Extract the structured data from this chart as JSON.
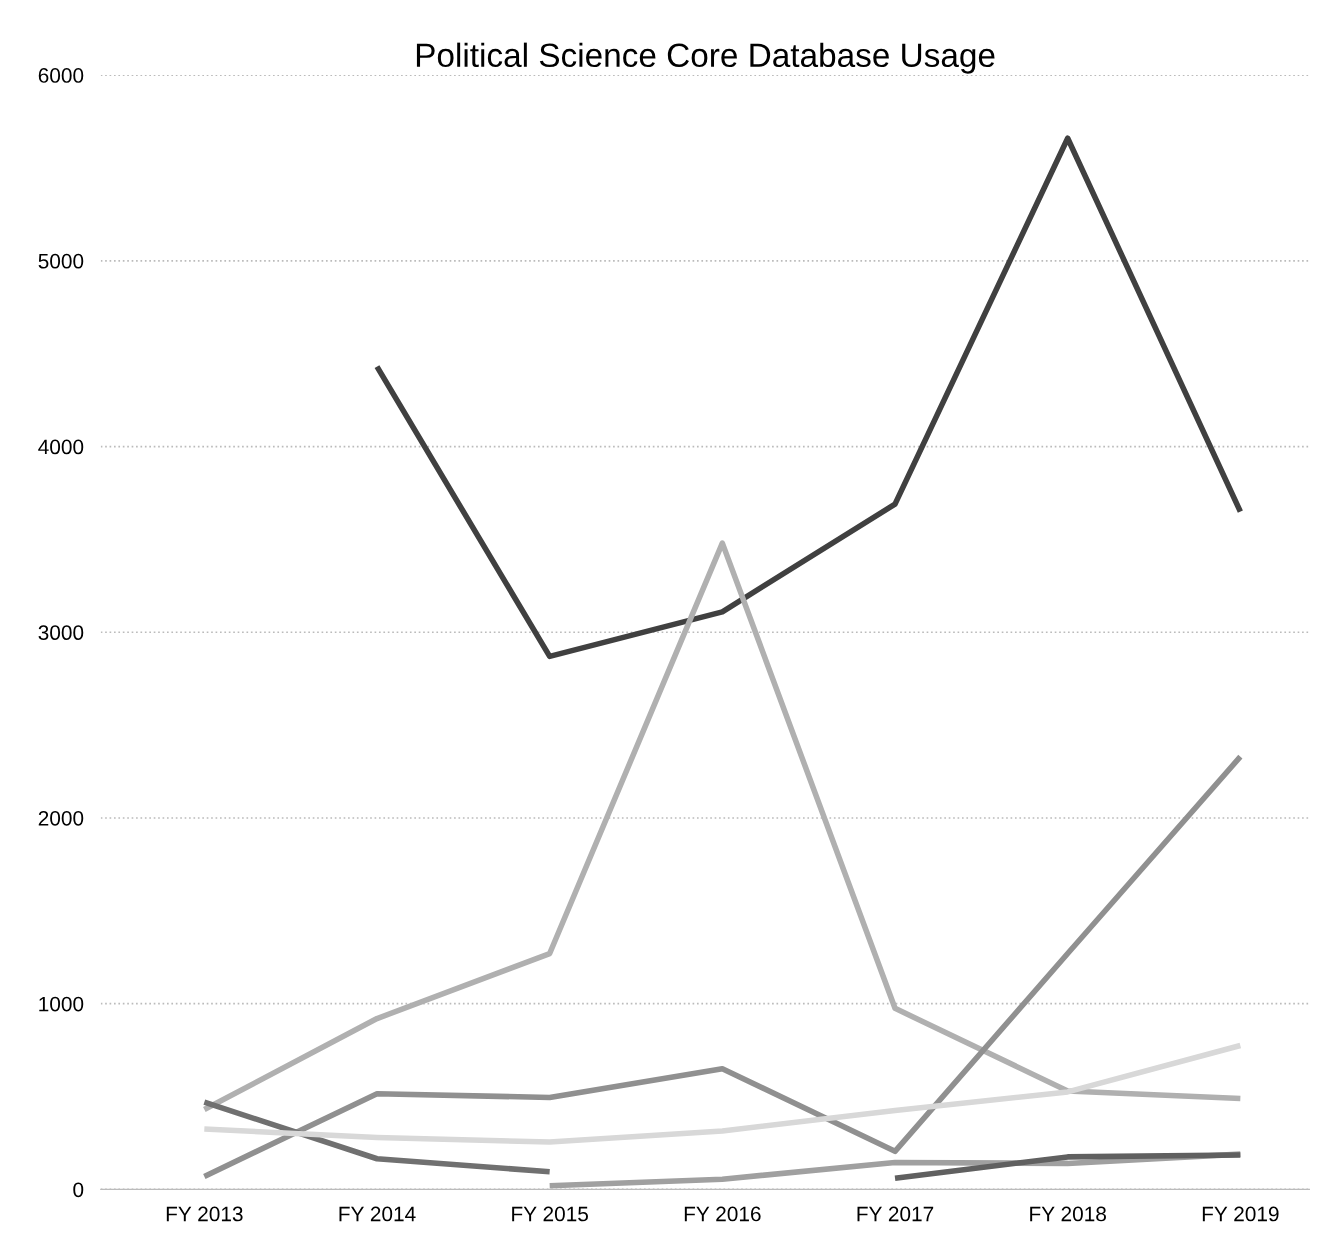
{
  "chart_data": {
    "type": "line",
    "title": "Political Science Core Database Usage",
    "categories": [
      "FY 2013",
      "FY 2014",
      "FY 2015",
      "FY 2016",
      "FY 2017",
      "FY 2018",
      "FY 2019"
    ],
    "series": [
      {
        "color": "#404040",
        "values": [
          null,
          4430,
          2870,
          3110,
          3690,
          5660,
          3650
        ]
      },
      {
        "color": "#b0b0b0",
        "values": [
          430,
          920,
          1270,
          3480,
          975,
          530,
          490
        ]
      },
      {
        "color": "#909090",
        "values": [
          70,
          515,
          495,
          650,
          205,
          1270,
          2330
        ]
      },
      {
        "color": "#707070",
        "values": [
          470,
          165,
          95,
          null,
          null,
          null,
          null
        ]
      },
      {
        "color": "#d8d8d8",
        "values": [
          325,
          280,
          255,
          315,
          425,
          525,
          775
        ]
      },
      {
        "color": "#a0a0a0",
        "values": [
          null,
          null,
          20,
          55,
          145,
          140,
          190
        ]
      },
      {
        "color": "#606060",
        "values": [
          null,
          null,
          null,
          null,
          60,
          175,
          185
        ]
      }
    ],
    "ylim": [
      0,
      6000
    ],
    "yticks": [
      0,
      1000,
      2000,
      3000,
      4000,
      5000,
      6000
    ],
    "grid": "y"
  }
}
